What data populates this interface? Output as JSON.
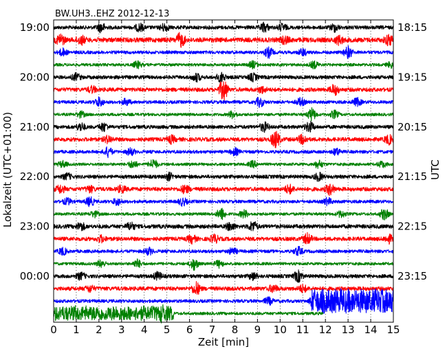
{
  "chart_data": {
    "type": "line",
    "title": "BW.UH3..EHZ 2012-12-13",
    "xlabel": "Zeit  [min]",
    "ylabel_left": "Lokalzeit (UTC+01:00)",
    "ylabel_right": "UTC",
    "xlim": [
      0,
      15
    ],
    "x_ticks": [
      "0",
      "1",
      "2",
      "3",
      "4",
      "5",
      "6",
      "7",
      "8",
      "9",
      "10",
      "11",
      "12",
      "13",
      "14",
      "15"
    ],
    "grid": "vertical dotted lines at each minute",
    "trace_count": 24,
    "trace_interval_minutes": 15,
    "trace_colors": [
      "#000000",
      "#ff0000",
      "#0000ff",
      "#008000"
    ],
    "left_ticks": [
      {
        "label": "19:00",
        "trace": 0
      },
      {
        "label": "20:00",
        "trace": 4
      },
      {
        "label": "21:00",
        "trace": 8
      },
      {
        "label": "22:00",
        "trace": 12
      },
      {
        "label": "23:00",
        "trace": 16
      },
      {
        "label": "00:00",
        "trace": 20
      }
    ],
    "right_ticks": [
      {
        "label": "18:15",
        "trace": 0
      },
      {
        "label": "19:15",
        "trace": 4
      },
      {
        "label": "20:15",
        "trace": 8
      },
      {
        "label": "21:15",
        "trace": 12
      },
      {
        "label": "22:15",
        "trace": 16
      },
      {
        "label": "23:15",
        "trace": 20
      }
    ],
    "traces": [
      {
        "index": 0,
        "color": "#000000",
        "amp": 1.0,
        "bursts": [
          [
            2.1,
            1.2
          ],
          [
            3.8,
            1.0
          ],
          [
            4.9,
            1.0
          ],
          [
            9.3,
            1.2
          ],
          [
            10.1,
            0.9
          ],
          [
            12.4,
            1.0
          ]
        ],
        "end": 15
      },
      {
        "index": 1,
        "color": "#ff0000",
        "amp": 1.3,
        "bursts": [
          [
            0.3,
            1.4
          ],
          [
            1.2,
            1.1
          ],
          [
            5.6,
            1.8
          ],
          [
            10.2,
            0.9
          ],
          [
            12.6,
            1.0
          ],
          [
            14.8,
            1.3
          ]
        ],
        "end": 15
      },
      {
        "index": 2,
        "color": "#0000ff",
        "amp": 0.9,
        "bursts": [
          [
            0.4,
            0.9
          ],
          [
            9.5,
            1.3
          ],
          [
            11.0,
            0.9
          ],
          [
            13.0,
            1.5
          ]
        ],
        "end": 15
      },
      {
        "index": 3,
        "color": "#008000",
        "amp": 0.8,
        "bursts": [
          [
            3.7,
            0.9
          ],
          [
            8.8,
            0.9
          ],
          [
            11.5,
            0.9
          ],
          [
            14.9,
            0.8
          ]
        ],
        "end": 15
      },
      {
        "index": 4,
        "color": "#000000",
        "amp": 1.0,
        "bursts": [
          [
            1.0,
            0.9
          ],
          [
            6.3,
            1.0
          ],
          [
            7.4,
            1.2
          ],
          [
            8.8,
            0.9
          ]
        ],
        "end": 15
      },
      {
        "index": 5,
        "color": "#ff0000",
        "amp": 1.1,
        "bursts": [
          [
            1.7,
            0.8
          ],
          [
            7.5,
            2.8
          ],
          [
            9.2,
            0.8
          ],
          [
            12.4,
            1.3
          ]
        ],
        "end": 15
      },
      {
        "index": 6,
        "color": "#0000ff",
        "amp": 0.9,
        "bursts": [
          [
            2.0,
            1.2
          ],
          [
            3.2,
            0.8
          ],
          [
            9.1,
            1.2
          ],
          [
            10.9,
            1.0
          ],
          [
            13.4,
            1.0
          ]
        ],
        "end": 15
      },
      {
        "index": 7,
        "color": "#008000",
        "amp": 0.8,
        "bursts": [
          [
            1.2,
            0.8
          ],
          [
            7.9,
            0.9
          ],
          [
            11.4,
            1.6
          ],
          [
            12.4,
            1.0
          ]
        ],
        "end": 15
      },
      {
        "index": 8,
        "color": "#000000",
        "amp": 1.0,
        "bursts": [
          [
            1.2,
            1.0
          ],
          [
            2.2,
            1.1
          ],
          [
            9.3,
            1.2
          ],
          [
            11.3,
            1.4
          ]
        ],
        "end": 15
      },
      {
        "index": 9,
        "color": "#ff0000",
        "amp": 1.1,
        "bursts": [
          [
            2.4,
            0.9
          ],
          [
            5.2,
            0.9
          ],
          [
            9.8,
            2.2
          ],
          [
            11.0,
            1.2
          ],
          [
            14.8,
            1.1
          ]
        ],
        "end": 15
      },
      {
        "index": 10,
        "color": "#0000ff",
        "amp": 0.9,
        "bursts": [
          [
            2.4,
            1.2
          ],
          [
            3.4,
            0.9
          ],
          [
            8.0,
            0.9
          ],
          [
            12.5,
            0.9
          ]
        ],
        "end": 15
      },
      {
        "index": 11,
        "color": "#008000",
        "amp": 0.8,
        "bursts": [
          [
            0.4,
            0.8
          ],
          [
            3.5,
            1.0
          ],
          [
            4.4,
            1.3
          ],
          [
            8.8,
            0.8
          ],
          [
            11.7,
            1.0
          ],
          [
            14.5,
            0.8
          ]
        ],
        "end": 15
      },
      {
        "index": 12,
        "color": "#000000",
        "amp": 1.0,
        "bursts": [
          [
            0.6,
            0.8
          ],
          [
            5.1,
            0.9
          ],
          [
            11.7,
            1.0
          ]
        ],
        "end": 15
      },
      {
        "index": 13,
        "color": "#ff0000",
        "amp": 1.1,
        "bursts": [
          [
            0.3,
            1.0
          ],
          [
            1.6,
            0.8
          ],
          [
            3.0,
            0.9
          ],
          [
            5.8,
            1.0
          ],
          [
            10.4,
            1.1
          ],
          [
            12.2,
            1.4
          ]
        ],
        "end": 15
      },
      {
        "index": 14,
        "color": "#0000ff",
        "amp": 0.9,
        "bursts": [
          [
            0.6,
            0.8
          ],
          [
            1.6,
            1.2
          ],
          [
            2.8,
            0.9
          ],
          [
            5.7,
            1.0
          ],
          [
            12.1,
            0.9
          ]
        ],
        "end": 15
      },
      {
        "index": 15,
        "color": "#008000",
        "amp": 0.8,
        "bursts": [
          [
            1.8,
            0.8
          ],
          [
            7.4,
            1.6
          ],
          [
            8.4,
            1.0
          ],
          [
            12.7,
            0.9
          ],
          [
            14.6,
            1.5
          ]
        ],
        "end": 15
      },
      {
        "index": 16,
        "color": "#000000",
        "amp": 1.1,
        "bursts": [
          [
            1.2,
            1.0
          ],
          [
            3.4,
            1.0
          ],
          [
            7.8,
            1.0
          ],
          [
            8.8,
            1.3
          ]
        ],
        "end": 15
      },
      {
        "index": 17,
        "color": "#ff0000",
        "amp": 1.1,
        "bursts": [
          [
            2.1,
            0.8
          ],
          [
            6.1,
            1.0
          ],
          [
            7.1,
            1.0
          ],
          [
            11.2,
            1.3
          ],
          [
            14.8,
            1.0
          ]
        ],
        "end": 15
      },
      {
        "index": 18,
        "color": "#0000ff",
        "amp": 0.9,
        "bursts": [
          [
            0.4,
            0.9
          ],
          [
            4.2,
            0.9
          ],
          [
            7.9,
            0.9
          ],
          [
            10.8,
            1.1
          ]
        ],
        "end": 15
      },
      {
        "index": 19,
        "color": "#008000",
        "amp": 0.8,
        "bursts": [
          [
            2.1,
            0.9
          ],
          [
            3.7,
            1.1
          ],
          [
            6.2,
            1.6
          ],
          [
            7.3,
            0.9
          ]
        ],
        "end": 15
      },
      {
        "index": 20,
        "color": "#000000",
        "amp": 1.0,
        "bursts": [
          [
            1.2,
            0.9
          ],
          [
            4.6,
            1.0
          ],
          [
            8.8,
            0.9
          ],
          [
            10.8,
            1.4
          ]
        ],
        "end": 15
      },
      {
        "index": 21,
        "color": "#ff0000",
        "amp": 1.1,
        "bursts": [
          [
            1.6,
            0.8
          ],
          [
            6.3,
            1.6
          ],
          [
            9.7,
            0.9
          ],
          [
            11.0,
            0.9
          ]
        ],
        "end": 15
      },
      {
        "index": 22,
        "color": "#0000ff",
        "amp": 0.9,
        "bursts": [
          [
            9.5,
            0.9
          ],
          [
            11.5,
            2.6
          ]
        ],
        "end": 15,
        "loud_from": 11.4,
        "loud_amp": 2.2
      },
      {
        "index": 23,
        "color": "#008000",
        "amp": 0.8,
        "bursts": [
          [
            4.8,
            2.6
          ]
        ],
        "end": 11.9,
        "loud_until": 5.3,
        "loud_amp": 2.8
      }
    ]
  }
}
